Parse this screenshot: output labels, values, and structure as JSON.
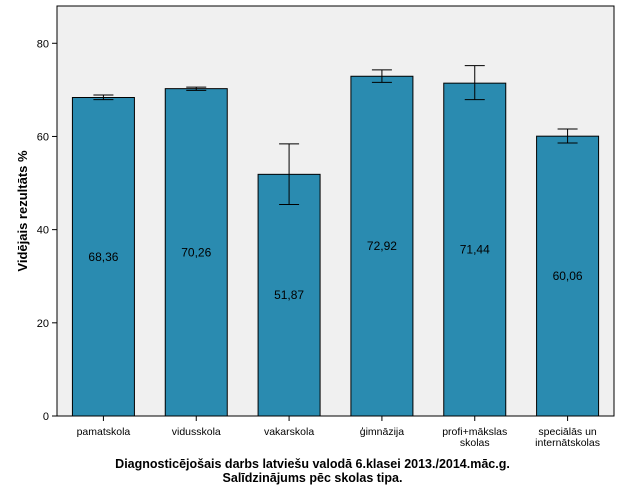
{
  "chart_data": {
    "type": "bar",
    "categories": [
      "pamatskola",
      "vidusskola",
      "vakarskola",
      "ģimnāzija",
      "profi+mākslas skolas",
      "speciālās un internātskolas"
    ],
    "category_lines": [
      [
        "pamatskola"
      ],
      [
        "vidusskola"
      ],
      [
        "vakarskola"
      ],
      [
        "ģimnāzija"
      ],
      [
        "profi+mākslas",
        "skolas"
      ],
      [
        "speciālās un",
        "internātskolas"
      ]
    ],
    "values": [
      68.36,
      70.26,
      51.87,
      72.92,
      71.44,
      60.06
    ],
    "value_labels": [
      "68,36",
      "70,26",
      "51,87",
      "72,92",
      "71,44",
      "60,06"
    ],
    "error_low": [
      67.9,
      69.9,
      45.4,
      71.6,
      67.9,
      58.6
    ],
    "error_high": [
      68.9,
      70.6,
      58.4,
      74.3,
      75.2,
      61.6
    ],
    "ylabel": "Vidējais rezultāts %",
    "xlabel": "",
    "ylim": [
      0,
      88
    ],
    "yticks": [
      0,
      20,
      40,
      60,
      80
    ],
    "bar_color": "#2a8bb0",
    "plot_background": "#f0f0f0",
    "grid": false,
    "caption": [
      "Diagnosticējošais darbs latviešu valodā 6.klasei 2013./2014.māc.g.",
      "Salīdzinājums pēc skolas tipa."
    ]
  }
}
